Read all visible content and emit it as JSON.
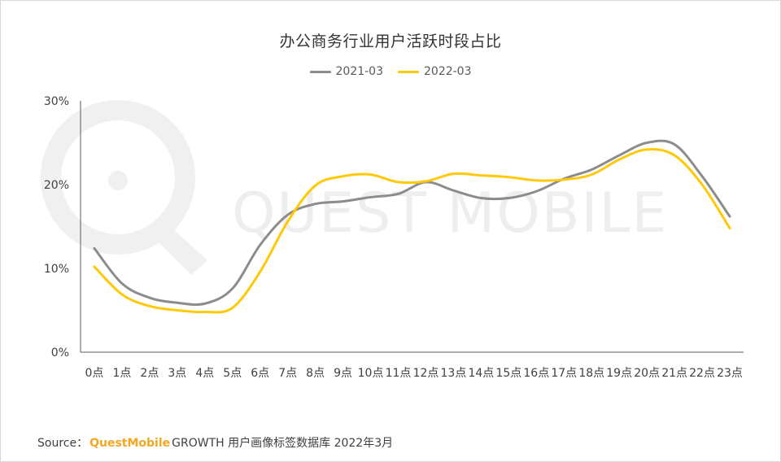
{
  "watermark": {
    "text": "QUEST MOBILE",
    "color": "#eeeeee"
  },
  "chart_data": {
    "type": "line",
    "title": "办公商务行业用户活跃时段占比",
    "categories": [
      "0点",
      "1点",
      "2点",
      "3点",
      "4点",
      "5点",
      "6点",
      "7点",
      "8点",
      "9点",
      "10点",
      "11点",
      "12点",
      "13点",
      "14点",
      "15点",
      "16点",
      "17点",
      "18点",
      "19点",
      "20点",
      "21点",
      "22点",
      "23点"
    ],
    "yticks": [
      "0%",
      "10%",
      "20%",
      "30%"
    ],
    "ylim": [
      0,
      30
    ],
    "grid": false,
    "legend_position": "top-center",
    "series": [
      {
        "name": "2021-03",
        "color": "#8c8c8c",
        "values": [
          12.4,
          8.2,
          6.5,
          5.9,
          5.8,
          7.6,
          12.8,
          16.4,
          17.7,
          18.0,
          18.5,
          18.9,
          20.3,
          19.3,
          18.4,
          18.4,
          19.2,
          20.7,
          21.8,
          23.5,
          25.0,
          24.8,
          21.0,
          16.2
        ]
      },
      {
        "name": "2022-03",
        "color": "#ffc907",
        "values": [
          10.2,
          6.9,
          5.5,
          5.0,
          4.8,
          5.3,
          9.6,
          15.6,
          19.9,
          21.0,
          21.2,
          20.3,
          20.4,
          21.3,
          21.1,
          20.9,
          20.5,
          20.6,
          21.2,
          23.0,
          24.2,
          23.5,
          20.0,
          14.8
        ]
      }
    ]
  },
  "source": {
    "label": "Source：",
    "brand": "QuestMobile",
    "text": "GROWTH 用户画像标签数据库 2022年3月"
  }
}
